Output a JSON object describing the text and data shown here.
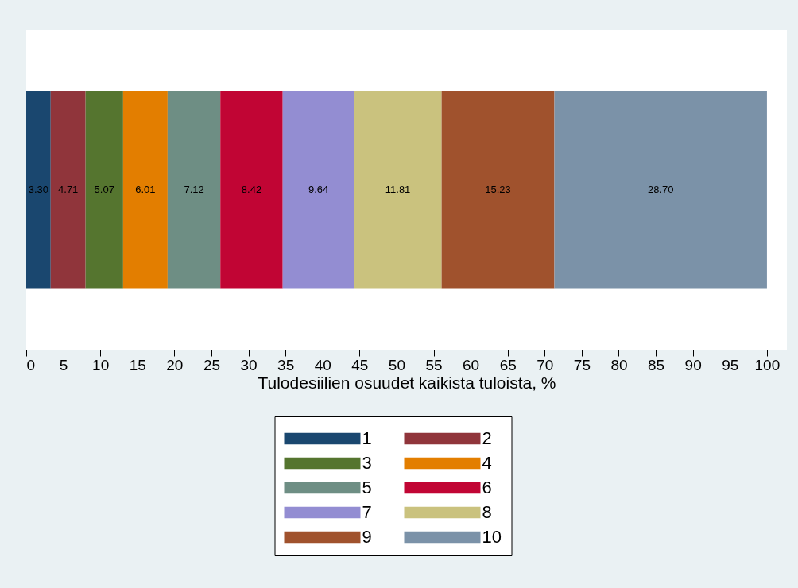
{
  "chart_data": {
    "type": "bar",
    "orientation": "horizontal",
    "stacked": true,
    "categories": [
      null
    ],
    "xlabel": "Tulodesiilien osuudet kaikista tuloista, %",
    "xlim": [
      0,
      102.7
    ],
    "xticks": [
      0,
      5,
      10,
      15,
      20,
      25,
      30,
      35,
      40,
      45,
      50,
      55,
      60,
      65,
      70,
      75,
      80,
      85,
      90,
      95,
      100
    ],
    "tick_labels": "x",
    "legend": "bottom",
    "series": [
      {
        "name": "1",
        "color": "#1a476f",
        "values": [
          3.3
        ],
        "value_labels": [
          "3.30"
        ]
      },
      {
        "name": "2",
        "color": "#90353b",
        "values": [
          4.71
        ],
        "value_labels": [
          "4.71"
        ]
      },
      {
        "name": "3",
        "color": "#55752f",
        "values": [
          5.07
        ],
        "value_labels": [
          "5.07"
        ]
      },
      {
        "name": "4",
        "color": "#e37e00",
        "values": [
          6.01
        ],
        "value_labels": [
          "6.01"
        ]
      },
      {
        "name": "5",
        "color": "#6e8e84",
        "values": [
          7.12
        ],
        "value_labels": [
          "7.12"
        ]
      },
      {
        "name": "6",
        "color": "#c10534",
        "values": [
          8.42
        ],
        "value_labels": [
          "8.42"
        ]
      },
      {
        "name": "7",
        "color": "#938dd2",
        "values": [
          9.64
        ],
        "value_labels": [
          "9.64"
        ]
      },
      {
        "name": "8",
        "color": "#cac27e",
        "values": [
          11.81
        ],
        "value_labels": [
          "11.81"
        ]
      },
      {
        "name": "9",
        "color": "#a0522d",
        "values": [
          15.23
        ],
        "value_labels": [
          "15.23"
        ]
      },
      {
        "name": "10",
        "color": "#7b92a8",
        "values": [
          28.7
        ],
        "value_labels": [
          "28.70"
        ]
      }
    ]
  }
}
